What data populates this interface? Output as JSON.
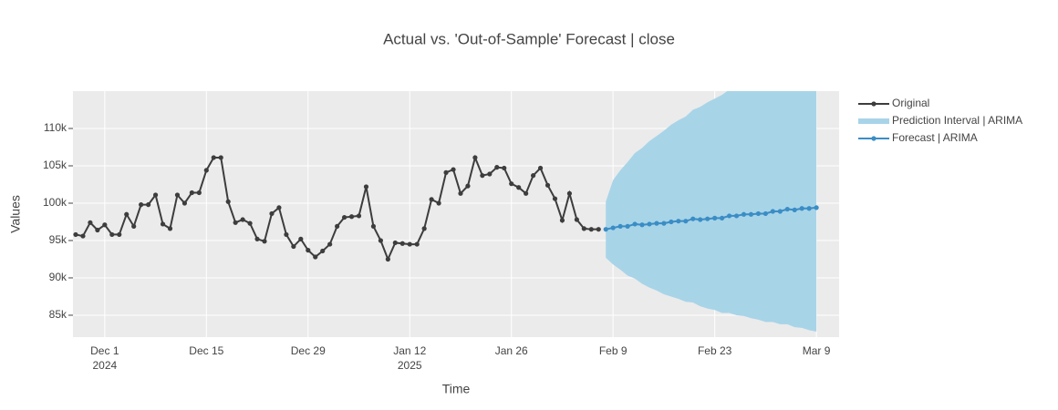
{
  "chart_data": {
    "type": "line",
    "title": "Actual vs. 'Out-of-Sample' Forecast | close",
    "x_label": "Time",
    "y_label": "Values",
    "xlim": [
      "2024-11-26T15:00",
      "2025-03-12T03:00"
    ],
    "xticks": [
      {
        "value": "2024-12-01",
        "label": "Dec 1",
        "year": "2024"
      },
      {
        "value": "2024-12-15",
        "label": "Dec 15"
      },
      {
        "value": "2024-12-29",
        "label": "Dec 29"
      },
      {
        "value": "2025-01-12",
        "label": "Jan 12",
        "year": "2025"
      },
      {
        "value": "2025-01-26",
        "label": "Jan 26"
      },
      {
        "value": "2025-02-09",
        "label": "Feb 9"
      },
      {
        "value": "2025-02-23",
        "label": "Feb 23"
      },
      {
        "value": "2025-03-09",
        "label": "Mar 9"
      }
    ],
    "ylim": [
      82070,
      115000
    ],
    "yticks": [
      {
        "value": 85000,
        "label": "85k"
      },
      {
        "value": 90000,
        "label": "90k"
      },
      {
        "value": 95000,
        "label": "95k"
      },
      {
        "value": 100000,
        "label": "100k"
      },
      {
        "value": 105000,
        "label": "105k"
      },
      {
        "value": 110000,
        "label": "110k"
      }
    ],
    "grid": true,
    "legend": "right",
    "series": [
      {
        "name": "Original",
        "kind": "line",
        "color": "#3d3d3d",
        "x": [
          "2024-11-27",
          "2024-11-28",
          "2024-11-29",
          "2024-11-30",
          "2024-12-01",
          "2024-12-02",
          "2024-12-03",
          "2024-12-04",
          "2024-12-05",
          "2024-12-06",
          "2024-12-07",
          "2024-12-08",
          "2024-12-09",
          "2024-12-10",
          "2024-12-11",
          "2024-12-12",
          "2024-12-13",
          "2024-12-14",
          "2024-12-15",
          "2024-12-16",
          "2024-12-17",
          "2024-12-18",
          "2024-12-19",
          "2024-12-20",
          "2024-12-21",
          "2024-12-22",
          "2024-12-23",
          "2024-12-24",
          "2024-12-25",
          "2024-12-26",
          "2024-12-27",
          "2024-12-28",
          "2024-12-29",
          "2024-12-30",
          "2024-12-31",
          "2025-01-01",
          "2025-01-02",
          "2025-01-03",
          "2025-01-04",
          "2025-01-05",
          "2025-01-06",
          "2025-01-07",
          "2025-01-08",
          "2025-01-09",
          "2025-01-10",
          "2025-01-11",
          "2025-01-12",
          "2025-01-13",
          "2025-01-14",
          "2025-01-15",
          "2025-01-16",
          "2025-01-17",
          "2025-01-18",
          "2025-01-19",
          "2025-01-20",
          "2025-01-21",
          "2025-01-22",
          "2025-01-23",
          "2025-01-24",
          "2025-01-25",
          "2025-01-26",
          "2025-01-27",
          "2025-01-28",
          "2025-01-29",
          "2025-01-30",
          "2025-01-31",
          "2025-02-01",
          "2025-02-02",
          "2025-02-03",
          "2025-02-04",
          "2025-02-05",
          "2025-02-06",
          "2025-02-07"
        ],
        "values": [
          95800,
          95600,
          97400,
          96400,
          97100,
          95800,
          95800,
          98500,
          96900,
          99800,
          99800,
          101100,
          97200,
          96600,
          101100,
          100000,
          101400,
          101400,
          104400,
          106100,
          106100,
          100200,
          97400,
          97800,
          97300,
          95200,
          94900,
          98600,
          99400,
          95800,
          94200,
          95200,
          93700,
          92800,
          93600,
          94500,
          96900,
          98100,
          98200,
          98300,
          102200,
          96900,
          95000,
          92500,
          94700,
          94600,
          94500,
          94500,
          96600,
          100500,
          100000,
          104100,
          104500,
          101300,
          102300,
          106100,
          103700,
          103900,
          104800,
          104700,
          102600,
          102100,
          101300,
          103700,
          104700,
          102400,
          100600,
          97700,
          101300,
          97800,
          96600,
          96500,
          96500
        ]
      },
      {
        "name": "Prediction Interval | ARIMA",
        "kind": "band",
        "color": "#a8d4e8",
        "x": [
          "2025-02-08",
          "2025-02-09",
          "2025-02-10",
          "2025-02-11",
          "2025-02-12",
          "2025-02-13",
          "2025-02-14",
          "2025-02-15",
          "2025-02-16",
          "2025-02-17",
          "2025-02-18",
          "2025-02-19",
          "2025-02-20",
          "2025-02-21",
          "2025-02-22",
          "2025-02-23",
          "2025-02-24",
          "2025-02-25",
          "2025-02-26",
          "2025-02-27",
          "2025-02-28",
          "2025-03-01",
          "2025-03-02",
          "2025-03-03",
          "2025-03-04",
          "2025-03-05",
          "2025-03-06",
          "2025-03-07",
          "2025-03-08",
          "2025-03-09"
        ],
        "lower": [
          92700,
          91800,
          91100,
          90300,
          89900,
          89200,
          88700,
          88300,
          87800,
          87500,
          87200,
          86800,
          86700,
          86200,
          85900,
          85700,
          85300,
          85300,
          85000,
          84900,
          84600,
          84400,
          84100,
          84100,
          83800,
          83800,
          83400,
          83300,
          83000,
          82800
        ],
        "upper": [
          100200,
          103100,
          104400,
          105500,
          106700,
          107400,
          108300,
          109000,
          109700,
          110500,
          111100,
          111600,
          112500,
          112900,
          113500,
          114000,
          114500,
          115200,
          115600,
          116200,
          116600,
          117100,
          117500,
          118100,
          118500,
          119200,
          119500,
          120100,
          120500,
          121000
        ]
      },
      {
        "name": "Forecast | ARIMA",
        "kind": "line",
        "color": "#3a8dc5",
        "x": [
          "2025-02-08",
          "2025-02-09",
          "2025-02-10",
          "2025-02-11",
          "2025-02-12",
          "2025-02-13",
          "2025-02-14",
          "2025-02-15",
          "2025-02-16",
          "2025-02-17",
          "2025-02-18",
          "2025-02-19",
          "2025-02-20",
          "2025-02-21",
          "2025-02-22",
          "2025-02-23",
          "2025-02-24",
          "2025-02-25",
          "2025-02-26",
          "2025-02-27",
          "2025-02-28",
          "2025-03-01",
          "2025-03-02",
          "2025-03-03",
          "2025-03-04",
          "2025-03-05",
          "2025-03-06",
          "2025-03-07",
          "2025-03-08",
          "2025-03-09"
        ],
        "values": [
          96500,
          96700,
          96900,
          96900,
          97200,
          97100,
          97200,
          97300,
          97300,
          97500,
          97600,
          97600,
          97900,
          97800,
          97900,
          98000,
          98000,
          98300,
          98300,
          98500,
          98500,
          98600,
          98600,
          98900,
          98900,
          99200,
          99100,
          99300,
          99300,
          99400
        ]
      }
    ]
  }
}
